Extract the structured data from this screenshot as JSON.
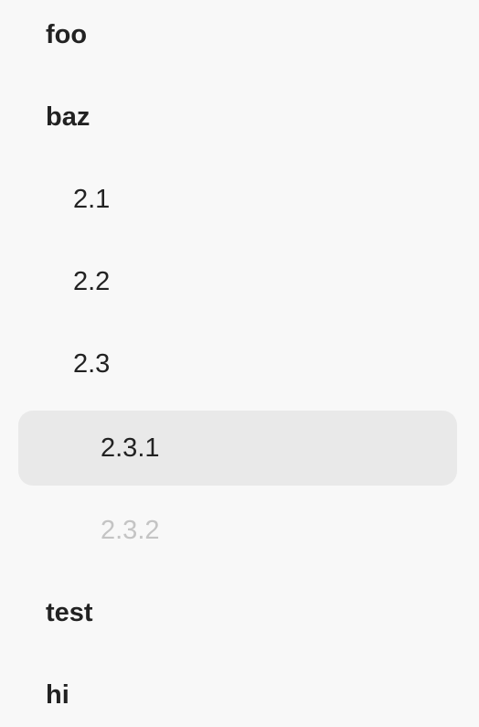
{
  "navigation": {
    "items": [
      {
        "label": "foo",
        "level": 0,
        "state": "normal"
      },
      {
        "label": "baz",
        "level": 0,
        "state": "normal"
      },
      {
        "label": "2.1",
        "level": 1,
        "state": "normal"
      },
      {
        "label": "2.2",
        "level": 1,
        "state": "normal"
      },
      {
        "label": "2.3",
        "level": 1,
        "state": "normal"
      },
      {
        "label": "2.3.1",
        "level": 2,
        "state": "selected"
      },
      {
        "label": "2.3.2",
        "level": 2,
        "state": "disabled"
      },
      {
        "label": "test",
        "level": 0,
        "state": "normal"
      },
      {
        "label": "hi",
        "level": 0,
        "state": "normal"
      }
    ]
  },
  "colors": {
    "background": "#f8f8f8",
    "text": "#222222",
    "selected_background": "#e9e9e9",
    "disabled_text": "#c4c4c4"
  }
}
